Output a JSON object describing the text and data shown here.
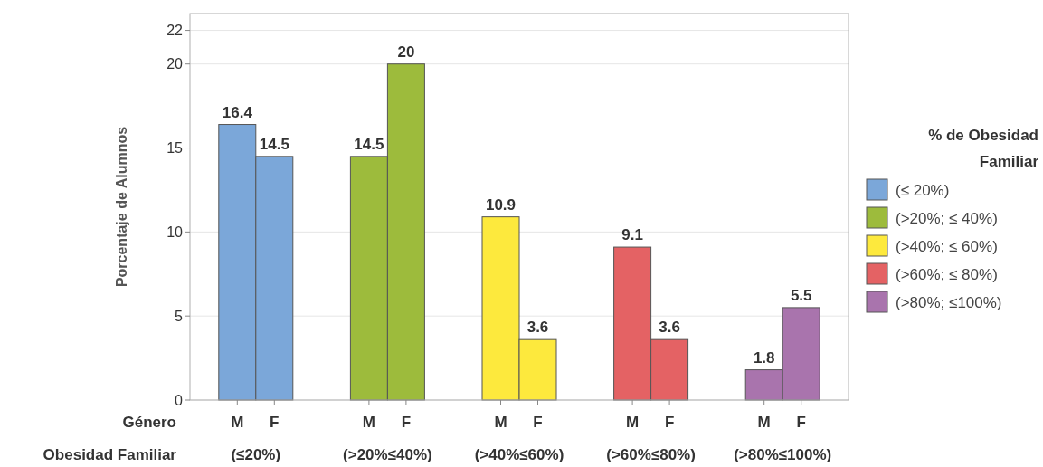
{
  "chart_data": {
    "type": "bar",
    "ylabel": "Porcentaje de Alumnos",
    "legend_title": "% de Obesidad Familiar",
    "categories": [
      "M",
      "F",
      "M",
      "F",
      "M",
      "F",
      "M",
      "F",
      "M",
      "F"
    ],
    "series": [
      {
        "name": "(≤ 20%)",
        "color": "#7ba7d9",
        "values": [
          16.4,
          14.5,
          null,
          null,
          null,
          null,
          null,
          null,
          null,
          null
        ]
      },
      {
        "name": "(>20%; ≤ 40%)",
        "color": "#9dbb3c",
        "values": [
          null,
          null,
          14.5,
          20,
          null,
          null,
          null,
          null,
          null,
          null
        ]
      },
      {
        "name": "(>40%; ≤ 60%)",
        "color": "#fde93d",
        "values": [
          null,
          null,
          null,
          null,
          10.9,
          3.6,
          null,
          null,
          null,
          null
        ]
      },
      {
        "name": "(>60%; ≤ 80%)",
        "color": "#e46264",
        "values": [
          null,
          null,
          null,
          null,
          null,
          null,
          9.1,
          3.6,
          null,
          null
        ]
      },
      {
        "name": "(>80%; ≤100%)",
        "color": "#a974ad",
        "values": [
          null,
          null,
          null,
          null,
          null,
          null,
          null,
          null,
          1.8,
          5.5
        ]
      }
    ],
    "annotations": [
      "Género",
      "Obesidad Familiar",
      "(≤20%)",
      "(>20%≤40%)",
      "(>40%≤60%)",
      "(>60%≤80%)",
      "(>80%≤100%)"
    ],
    "ylim": [
      0,
      23
    ],
    "yticks": [
      0,
      5,
      10,
      15,
      20,
      22
    ],
    "grid": "y",
    "legend": "right",
    "data_labels": true
  }
}
